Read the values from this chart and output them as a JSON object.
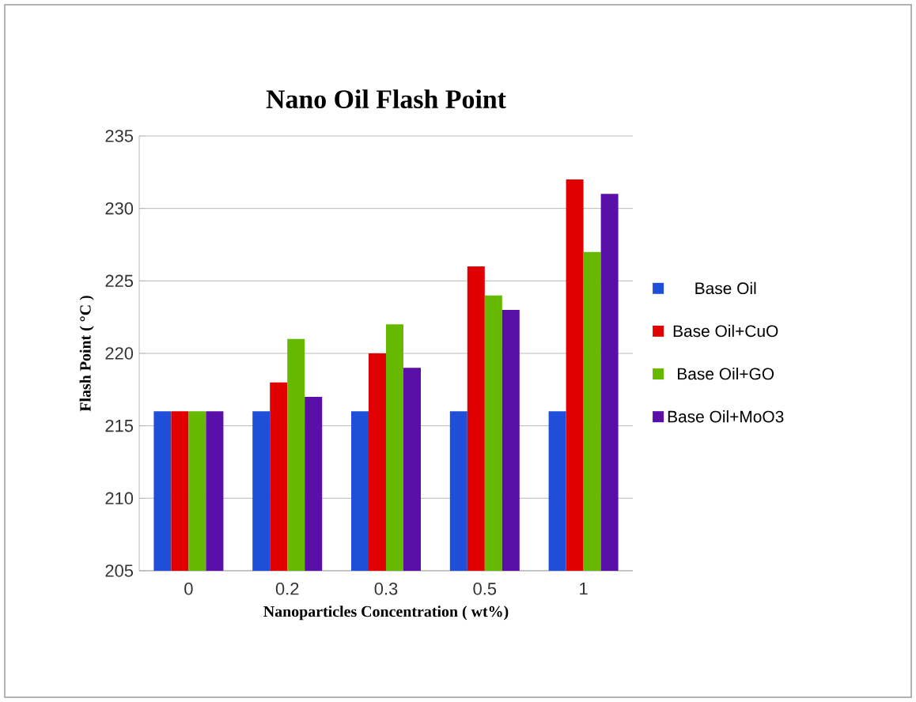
{
  "chart_data": {
    "type": "bar",
    "title": "Nano Oil Flash Point",
    "xlabel": "Nanoparticles Concentration ( wt%)",
    "ylabel": "Flash Point ( °C )",
    "categories": [
      "0",
      "0.2",
      "0.3",
      "0.5",
      "1"
    ],
    "series": [
      {
        "name": "Base Oil",
        "color": "#1f4fd8",
        "values": [
          216,
          216,
          216,
          216,
          216
        ]
      },
      {
        "name": "Base Oil+CuO",
        "color": "#e00000",
        "values": [
          216,
          218,
          220,
          226,
          232
        ]
      },
      {
        "name": "Base Oil+GO",
        "color": "#66b800",
        "values": [
          216,
          221,
          222,
          224,
          227
        ]
      },
      {
        "name": "Base Oil+MoO3",
        "color": "#5a0fa8",
        "values": [
          216,
          217,
          219,
          223,
          231
        ]
      }
    ],
    "ylim": [
      205,
      235
    ],
    "yticks": [
      205,
      210,
      215,
      220,
      225,
      230,
      235
    ],
    "grid": "y",
    "legend": "right"
  }
}
